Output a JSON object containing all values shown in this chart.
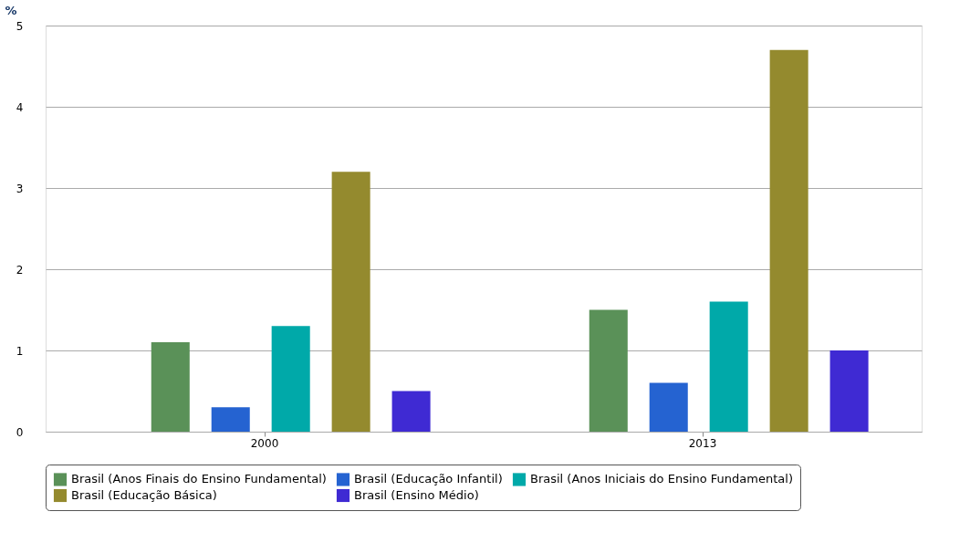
{
  "chart_data": {
    "type": "bar",
    "ylabel": "%",
    "categories": [
      "2000",
      "2013"
    ],
    "series": [
      {
        "name": "Brasil (Anos Finais do Ensino Fundamental)",
        "color": "#5a9158",
        "values": [
          1.1,
          1.5
        ]
      },
      {
        "name": "Brasil (Educação Infantil)",
        "color": "#2563d1",
        "values": [
          0.3,
          0.6
        ]
      },
      {
        "name": "Brasil (Anos Iniciais do Ensino Fundamental)",
        "color": "#00a9a9",
        "values": [
          1.3,
          1.6
        ]
      },
      {
        "name": "Brasil (Educação Básica)",
        "color": "#948a2e",
        "values": [
          3.2,
          4.7
        ]
      },
      {
        "name": "Brasil (Ensino Médio)",
        "color": "#3f2ad3",
        "values": [
          0.5,
          1.0
        ]
      }
    ],
    "ylim": [
      0,
      5
    ],
    "yticks": [
      0,
      1,
      2,
      3,
      4,
      5
    ],
    "grid": "y",
    "legend": "bottom"
  }
}
